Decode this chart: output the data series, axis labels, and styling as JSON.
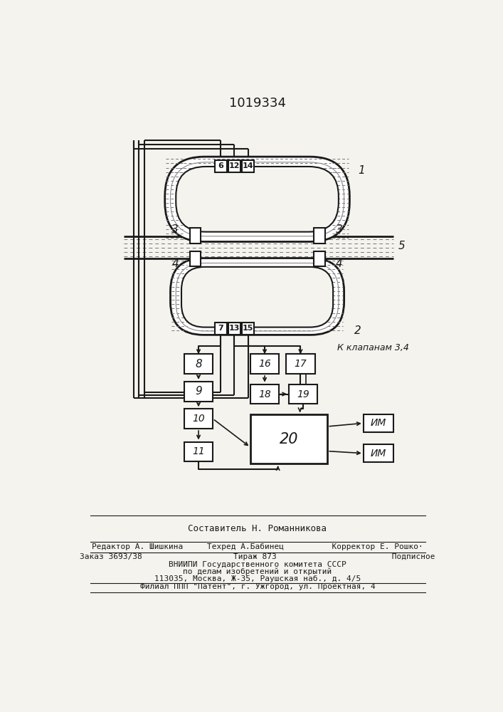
{
  "title": "1019334",
  "bg_color": "#f5f3ee",
  "line_color": "#1a1a1a",
  "paper": "#f5f3ee",
  "footer_lines": [
    [
      "Составитель Н. Романникова",
      "center"
    ],
    [
      "Редактор А. Шишкина     Техред А.Бабинец          Корректор Е. Рошко·",
      "center"
    ],
    [
      "Заказ 3693/38                   Тираж 873                        Подписное",
      "center"
    ],
    [
      "ВНИИПИ Государственного комитета СССР",
      "center"
    ],
    [
      "по делам изобретений и открытий",
      "center"
    ],
    [
      "113035, Москва, Ж-35, Раушская наб., д. 4/5",
      "center"
    ],
    [
      "Филиал ППП \"Патент\", г. Ужгород, ул. Проектная, 4",
      "center"
    ]
  ]
}
